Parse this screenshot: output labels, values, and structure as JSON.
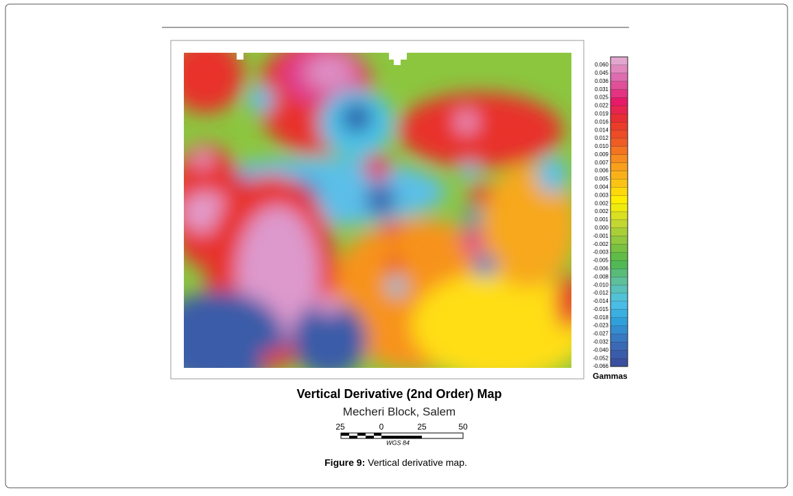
{
  "figure": {
    "title": "Vertical Derivative (2nd Order) Map",
    "subtitle": "Mecheri Block, Salem",
    "legend": {
      "unit": "Gammas",
      "labels": [
        "0.060",
        "0.045",
        "0.036",
        "0.031",
        "0.025",
        "0.022",
        "0.019",
        "0.016",
        "0.014",
        "0.012",
        "0.010",
        "0.009",
        "0.007",
        "0.006",
        "0.005",
        "0.004",
        "0.003",
        "0.002",
        "0.002",
        "0.001",
        "0.000",
        "-0.001",
        "-0.002",
        "-0.003",
        "-0.005",
        "-0.006",
        "-0.008",
        "-0.010",
        "-0.012",
        "-0.014",
        "-0.015",
        "-0.018",
        "-0.023",
        "-0.027",
        "-0.032",
        "-0.040",
        "-0.052",
        "-0.066"
      ]
    },
    "scale_bar": {
      "labels": [
        25,
        0,
        25,
        50
      ],
      "datum": "WGS 84"
    },
    "caption": {
      "label": "Figure 9:",
      "text": "Vertical derivative map."
    }
  }
}
